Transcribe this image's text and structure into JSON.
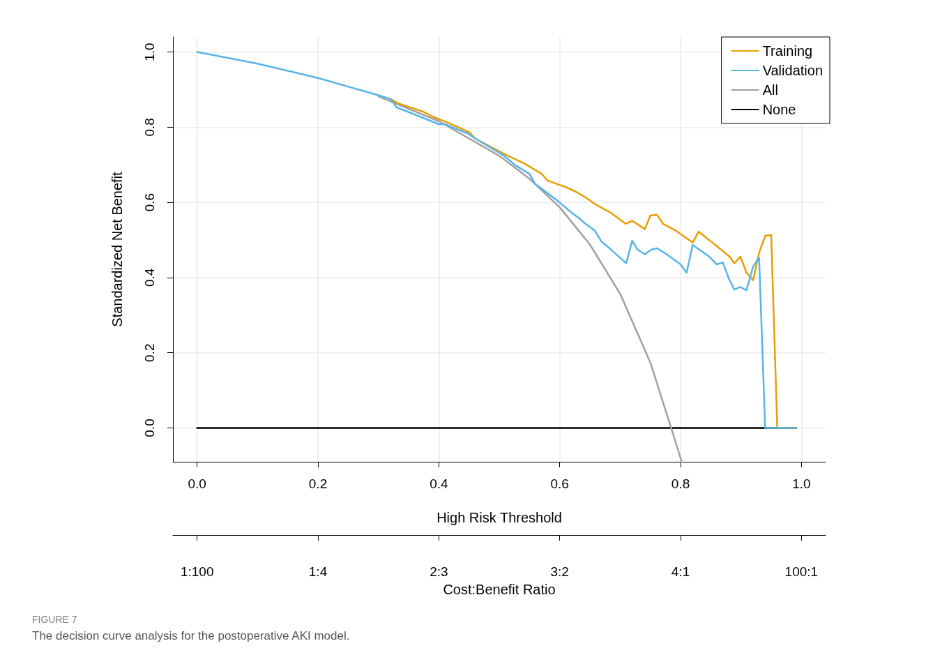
{
  "chart_data": {
    "type": "line",
    "xlabel": "High Risk Threshold",
    "ylabel": "Standardized Net Benefit",
    "x2label": "Cost:Benefit Ratio",
    "annotations": [
      "FIGURE 7",
      "The decision curve analysis for the postoperative AKI model.",
      "1:100",
      "1:4",
      "2:3",
      "3:2",
      "4:1",
      "100:1"
    ],
    "xlim": [
      -0.04,
      1.04
    ],
    "ylim": [
      -0.09,
      1.04
    ],
    "xticks": [
      {
        "value": 0,
        "label": "0.0"
      },
      0.2,
      0.4,
      0.6,
      0.8,
      {
        "value": 1,
        "label": "1.0"
      }
    ],
    "yticks": [
      {
        "value": 0,
        "label": "0.0"
      },
      0.2,
      0.4,
      0.6,
      0.8,
      {
        "value": 1,
        "label": "1.0"
      }
    ],
    "grid": true,
    "legend": "top right",
    "marker": "none",
    "line_style": "solid",
    "series": [
      {
        "name": "Training",
        "color": "#e69f00",
        "x": [
          0.32,
          0.332,
          0.373,
          0.39,
          0.418,
          0.451,
          0.46,
          0.509,
          0.542,
          0.57,
          0.58,
          0.599,
          0.61,
          0.626,
          0.644,
          0.66,
          0.686,
          0.709,
          0.72,
          0.741,
          0.75,
          0.761,
          0.771,
          0.792,
          0.82,
          0.83,
          0.856,
          0.881,
          0.889,
          0.899,
          0.909,
          0.92,
          0.93,
          0.94,
          0.95,
          0.96,
          0.991
        ],
        "values": [
          0.875,
          0.864,
          0.842,
          0.828,
          0.81,
          0.786,
          0.77,
          0.728,
          0.703,
          0.676,
          0.658,
          0.647,
          0.641,
          0.629,
          0.612,
          0.594,
          0.571,
          0.543,
          0.551,
          0.529,
          0.565,
          0.567,
          0.543,
          0.525,
          0.493,
          0.522,
          0.489,
          0.456,
          0.438,
          0.456,
          0.413,
          0.393,
          0.466,
          0.511,
          0.513,
          0,
          0
        ]
      },
      {
        "name": "Validation",
        "color": "#56b4e9",
        "x": [
          0,
          0.1,
          0.2,
          0.3,
          0.32,
          0.33,
          0.4,
          0.411,
          0.448,
          0.46,
          0.507,
          0.528,
          0.55,
          0.559,
          0.599,
          0.621,
          0.632,
          0.641,
          0.658,
          0.669,
          0.686,
          0.71,
          0.72,
          0.729,
          0.741,
          0.751,
          0.761,
          0.777,
          0.8,
          0.81,
          0.82,
          0.848,
          0.86,
          0.87,
          0.88,
          0.889,
          0.899,
          0.909,
          0.92,
          0.93,
          0.94,
          0.991
        ],
        "values": [
          1,
          0.969,
          0.931,
          0.885,
          0.875,
          0.853,
          0.808,
          0.808,
          0.783,
          0.77,
          0.725,
          0.697,
          0.676,
          0.65,
          0.601,
          0.571,
          0.558,
          0.545,
          0.525,
          0.496,
          0.473,
          0.438,
          0.498,
          0.474,
          0.462,
          0.474,
          0.478,
          0.462,
          0.435,
          0.413,
          0.487,
          0.455,
          0.435,
          0.44,
          0.397,
          0.368,
          0.375,
          0.366,
          0.429,
          0.453,
          0,
          0
        ]
      },
      {
        "name": "All",
        "color": "#a0a0a0",
        "x": [
          0.3,
          0.4,
          0.5,
          0.55,
          0.6,
          0.65,
          0.7,
          0.75,
          0.78,
          0.802
        ],
        "values": [
          0.882,
          0.816,
          0.724,
          0.663,
          0.587,
          0.488,
          0.357,
          0.174,
          0.023,
          -0.09
        ]
      },
      {
        "name": "None",
        "color": "#000000",
        "x": [
          0,
          0.991
        ],
        "values": [
          0,
          0
        ]
      }
    ]
  }
}
